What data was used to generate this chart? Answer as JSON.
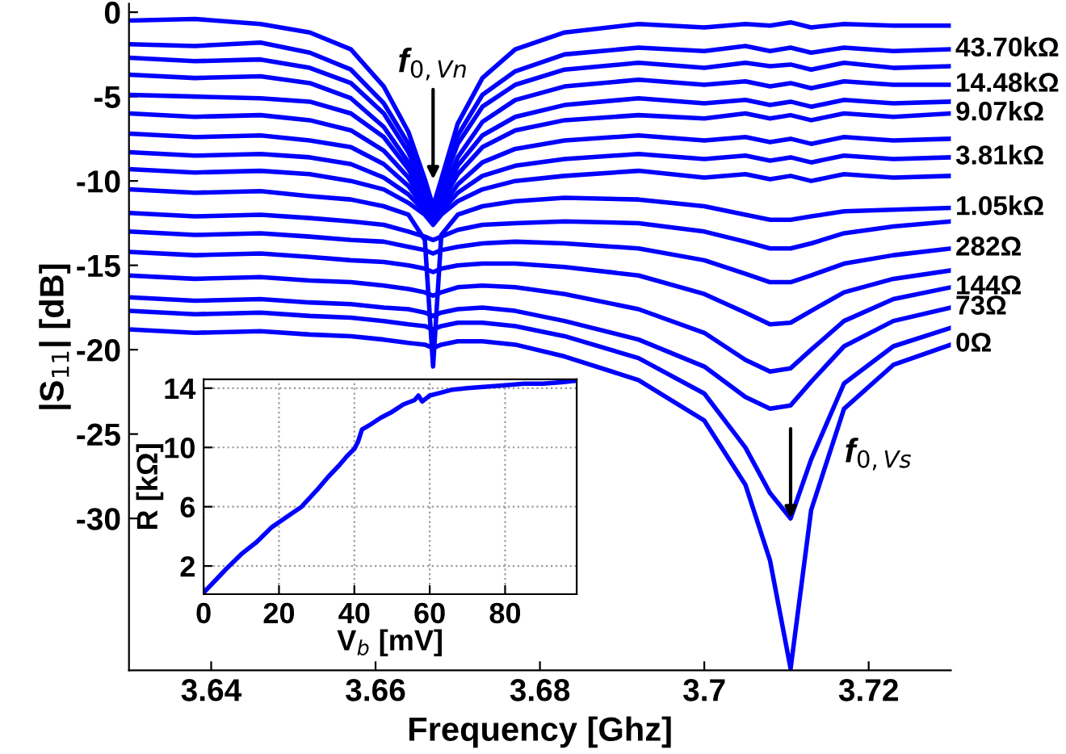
{
  "chart_data": [
    {
      "type": "line",
      "xlabel": "Frequency [Ghz]",
      "ylabel": "|S$_{11}$| [dB]",
      "x": [
        3.63,
        3.638,
        3.646,
        3.652,
        3.657,
        3.661,
        3.664,
        3.666,
        3.667,
        3.668,
        3.67,
        3.673,
        3.677,
        3.683,
        3.692,
        3.7,
        3.705,
        3.708,
        3.7105,
        3.713,
        3.717,
        3.723,
        3.73
      ],
      "xlim": [
        3.63,
        3.73
      ],
      "ylim": [
        -39,
        0.5
      ],
      "xticks": [
        3.64,
        3.66,
        3.68,
        3.7,
        3.72
      ],
      "yticks": [
        -30,
        -25,
        -20,
        -15,
        -10,
        -5,
        0
      ],
      "grid": false,
      "legend": false,
      "marker": "none",
      "line_style": "solid",
      "series": [
        {
          "color": "#0000ff",
          "values": [
            -0.5,
            -0.4,
            -0.7,
            -1.2,
            -2.2,
            -4.4,
            -7.1,
            -9.9,
            -11.5,
            -9.9,
            -6.6,
            -3.9,
            -2.2,
            -1.2,
            -0.7,
            -0.9,
            -0.7,
            -0.8,
            -0.6,
            -0.9,
            -0.7,
            -0.8,
            -0.8
          ]
        },
        {
          "name": "43.70kΩ",
          "color": "#0000ff",
          "values": [
            -1.9,
            -2.0,
            -1.8,
            -2.4,
            -3.4,
            -5.4,
            -7.8,
            -10.2,
            -11.6,
            -10.2,
            -7.3,
            -4.9,
            -3.5,
            -2.5,
            -2.1,
            -2.3,
            -2.0,
            -2.3,
            -2.1,
            -2.4,
            -2.1,
            -2.3,
            -2.2
          ]
        },
        {
          "color": "#0000ff",
          "values": [
            -2.7,
            -2.9,
            -2.8,
            -3.3,
            -4.2,
            -6.0,
            -8.3,
            -10.5,
            -11.8,
            -10.4,
            -7.8,
            -5.6,
            -4.3,
            -3.4,
            -3.0,
            -3.3,
            -3.0,
            -3.2,
            -3.1,
            -3.4,
            -3.0,
            -3.3,
            -3.2
          ]
        },
        {
          "name": "14.48kΩ",
          "color": "#0000ff",
          "values": [
            -3.7,
            -3.9,
            -3.8,
            -4.2,
            -5.1,
            -6.8,
            -8.9,
            -11.0,
            -12.0,
            -10.9,
            -8.6,
            -6.5,
            -5.2,
            -4.4,
            -4.0,
            -4.3,
            -4.1,
            -4.4,
            -4.2,
            -4.5,
            -4.1,
            -4.3,
            -4.3
          ]
        },
        {
          "color": "#0000ff",
          "values": [
            -4.9,
            -5.0,
            -5.1,
            -5.3,
            -6.0,
            -7.4,
            -9.3,
            -11.1,
            -12.2,
            -11.1,
            -9.1,
            -7.3,
            -6.2,
            -5.5,
            -5.1,
            -5.4,
            -5.2,
            -5.5,
            -5.3,
            -5.6,
            -5.2,
            -5.4,
            -5.3
          ]
        },
        {
          "name": "9.07kΩ",
          "color": "#0000ff",
          "values": [
            -6.0,
            -6.2,
            -6.1,
            -6.4,
            -7.0,
            -8.2,
            -9.8,
            -11.4,
            -12.3,
            -11.3,
            -9.6,
            -8.0,
            -7.0,
            -6.4,
            -6.1,
            -6.3,
            -6.0,
            -6.3,
            -6.1,
            -6.4,
            -6.0,
            -6.2,
            -6.0
          ]
        },
        {
          "color": "#0000ff",
          "values": [
            -7.2,
            -7.4,
            -7.3,
            -7.6,
            -8.0,
            -9.0,
            -10.3,
            -11.6,
            -12.4,
            -11.6,
            -10.2,
            -8.9,
            -8.1,
            -7.6,
            -7.3,
            -7.6,
            -7.4,
            -7.7,
            -7.5,
            -7.8,
            -7.4,
            -7.6,
            -7.5
          ]
        },
        {
          "name": "3.81kΩ",
          "color": "#0000ff",
          "values": [
            -8.3,
            -8.5,
            -8.4,
            -8.6,
            -9.0,
            -9.8,
            -10.8,
            -11.8,
            -12.5,
            -11.8,
            -10.7,
            -9.7,
            -9.1,
            -8.7,
            -8.4,
            -8.7,
            -8.5,
            -8.8,
            -8.6,
            -8.9,
            -8.5,
            -8.7,
            -8.6
          ]
        },
        {
          "color": "#0000ff",
          "values": [
            -9.3,
            -9.5,
            -9.4,
            -9.6,
            -10.0,
            -10.5,
            -11.3,
            -12.0,
            -12.6,
            -12.0,
            -11.2,
            -10.5,
            -10.0,
            -9.7,
            -9.4,
            -9.8,
            -9.6,
            -9.9,
            -9.7,
            -10.0,
            -9.6,
            -9.8,
            -9.7
          ]
        },
        {
          "name": "1.05kΩ",
          "color": "#0000ff",
          "values": [
            -10.5,
            -10.7,
            -10.6,
            -10.9,
            -11.1,
            -11.5,
            -12.0,
            -13.5,
            -21.0,
            -13.2,
            -12.0,
            -11.5,
            -11.2,
            -11.0,
            -11.1,
            -11.5,
            -12.0,
            -12.3,
            -12.3,
            -12.1,
            -11.8,
            -11.7,
            -11.6
          ]
        },
        {
          "color": "#0000ff",
          "values": [
            -11.9,
            -12.1,
            -12.0,
            -12.2,
            -12.4,
            -12.6,
            -13.0,
            -13.3,
            -13.5,
            -13.3,
            -12.9,
            -12.6,
            -12.5,
            -12.4,
            -12.5,
            -13.0,
            -13.6,
            -14.0,
            -14.0,
            -13.7,
            -13.1,
            -12.7,
            -12.4
          ]
        },
        {
          "name": "282Ω",
          "color": "#0000ff",
          "values": [
            -13.0,
            -13.2,
            -13.1,
            -13.3,
            -13.5,
            -13.6,
            -13.9,
            -14.1,
            -14.3,
            -14.1,
            -13.9,
            -13.7,
            -13.6,
            -13.7,
            -14.0,
            -14.7,
            -15.5,
            -16.0,
            -16.0,
            -15.6,
            -14.9,
            -14.4,
            -14.0
          ]
        },
        {
          "color": "#0000ff",
          "values": [
            -14.2,
            -14.4,
            -14.3,
            -14.5,
            -14.7,
            -14.8,
            -15.0,
            -15.2,
            -15.4,
            -15.2,
            -15.0,
            -14.9,
            -14.9,
            -15.1,
            -15.6,
            -16.7,
            -17.8,
            -18.5,
            -18.4,
            -17.7,
            -16.6,
            -15.8,
            -15.3
          ]
        },
        {
          "name": "144Ω",
          "color": "#0000ff",
          "values": [
            -15.6,
            -15.8,
            -15.7,
            -15.9,
            -16.0,
            -16.2,
            -16.4,
            -16.6,
            -16.8,
            -16.6,
            -16.3,
            -16.2,
            -16.3,
            -16.7,
            -17.6,
            -19.0,
            -20.6,
            -21.3,
            -21.1,
            -20.0,
            -18.3,
            -17.0,
            -16.3
          ]
        },
        {
          "name": "73Ω",
          "color": "#0000ff",
          "values": [
            -16.9,
            -17.1,
            -17.0,
            -17.2,
            -17.3,
            -17.5,
            -17.6,
            -17.8,
            -18.0,
            -17.8,
            -17.6,
            -17.5,
            -17.7,
            -18.3,
            -19.4,
            -21.0,
            -22.8,
            -23.5,
            -23.3,
            -21.9,
            -19.8,
            -18.3,
            -17.5
          ]
        },
        {
          "color": "#0000ff",
          "values": [
            -17.7,
            -17.9,
            -17.8,
            -18.0,
            -18.1,
            -18.3,
            -18.5,
            -18.6,
            -18.8,
            -18.6,
            -18.4,
            -18.4,
            -18.6,
            -19.2,
            -20.5,
            -22.6,
            -25.8,
            -28.5,
            -30.0,
            -26.5,
            -22.0,
            -19.8,
            -18.7
          ]
        },
        {
          "name": "0Ω",
          "color": "#0000ff",
          "values": [
            -18.8,
            -19.0,
            -18.9,
            -19.1,
            -19.2,
            -19.4,
            -19.6,
            -19.7,
            -19.9,
            -19.7,
            -19.5,
            -19.5,
            -19.7,
            -20.4,
            -21.8,
            -24.2,
            -28.0,
            -32.5,
            -38.9,
            -29.5,
            -23.5,
            -20.9,
            -19.7
          ]
        }
      ],
      "annotations": [
        {
          "text": "f$_{0,Vn}$",
          "x": 3.667,
          "y": -9.9
        },
        {
          "text": "f$_{0,Vs}$",
          "x": 3.7105,
          "y": -30.0
        }
      ]
    },
    {
      "type": "line",
      "xlabel": "V$_{b}$ [mV]",
      "ylabel": "R [kΩ]",
      "x": [
        0,
        3,
        6,
        10,
        14,
        18,
        22,
        26,
        30,
        33,
        36,
        38,
        40,
        41,
        42,
        44,
        47,
        50,
        53,
        56,
        57,
        58,
        60,
        63,
        66,
        70,
        75,
        80,
        85,
        90,
        95,
        99
      ],
      "xlim": [
        0,
        99
      ],
      "ylim": [
        0.1,
        14.6
      ],
      "xticks": [
        0,
        20,
        40,
        60,
        80
      ],
      "yticks": [
        2,
        6,
        10,
        14
      ],
      "grid": true,
      "legend": false,
      "marker": "none",
      "line_style": "solid",
      "series": [
        {
          "color": "#0000ff",
          "values": [
            0.2,
            1.0,
            1.8,
            2.8,
            3.6,
            4.6,
            5.3,
            6.0,
            7.1,
            8.0,
            8.8,
            9.4,
            9.9,
            10.4,
            11.2,
            11.5,
            12.0,
            12.4,
            12.9,
            13.2,
            13.5,
            13.1,
            13.5,
            13.7,
            13.9,
            14.0,
            14.1,
            14.2,
            14.3,
            14.3,
            14.4,
            14.5
          ]
        }
      ]
    }
  ]
}
